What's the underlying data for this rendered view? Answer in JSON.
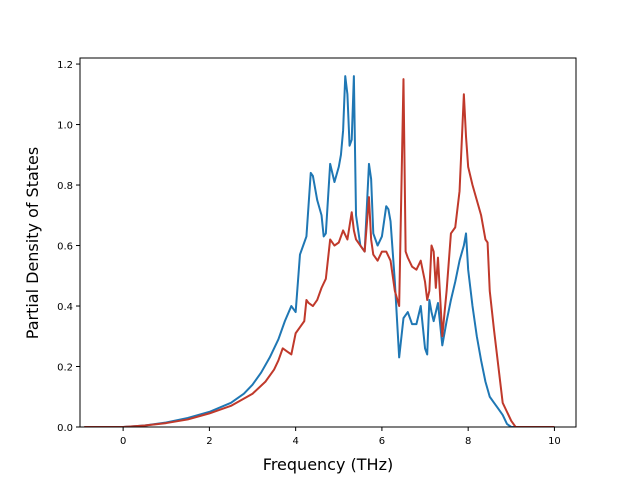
{
  "chart_data": {
    "type": "line",
    "xlabel": "Frequency (THz)",
    "ylabel": "Partial Density of States",
    "xlim": [
      -1.0,
      10.5
    ],
    "ylim": [
      0.0,
      1.22
    ],
    "xticks": [
      0,
      2,
      4,
      6,
      8,
      10
    ],
    "yticks": [
      0.0,
      0.2,
      0.4,
      0.6,
      0.8,
      1.0,
      1.2
    ],
    "xtick_labels": [
      "0",
      "2",
      "4",
      "6",
      "8",
      "10"
    ],
    "ytick_labels": [
      "0.0",
      "0.2",
      "0.4",
      "0.6",
      "0.8",
      "1.0",
      "1.2"
    ],
    "grid": false,
    "series": [
      {
        "color": "#1f77b4",
        "x": [
          -0.9,
          0.0,
          0.5,
          1.0,
          1.5,
          2.0,
          2.5,
          2.8,
          3.0,
          3.2,
          3.4,
          3.6,
          3.75,
          3.9,
          4.0,
          4.1,
          4.2,
          4.25,
          4.35,
          4.4,
          4.5,
          4.6,
          4.65,
          4.7,
          4.8,
          4.9,
          5.0,
          5.05,
          5.1,
          5.15,
          5.2,
          5.25,
          5.3,
          5.35,
          5.4,
          5.5,
          5.6,
          5.7,
          5.75,
          5.8,
          5.9,
          6.0,
          6.1,
          6.15,
          6.2,
          6.3,
          6.4,
          6.5,
          6.6,
          6.7,
          6.8,
          6.9,
          7.0,
          7.05,
          7.1,
          7.15,
          7.2,
          7.3,
          7.4,
          7.5,
          7.6,
          7.7,
          7.8,
          7.9,
          7.95,
          8.0,
          8.1,
          8.2,
          8.3,
          8.4,
          8.5,
          8.6,
          8.7,
          8.8,
          8.9,
          9.0,
          10.0
        ],
        "y": [
          0.0,
          0.0,
          0.005,
          0.015,
          0.03,
          0.05,
          0.08,
          0.11,
          0.14,
          0.18,
          0.23,
          0.29,
          0.35,
          0.4,
          0.38,
          0.57,
          0.61,
          0.63,
          0.84,
          0.83,
          0.75,
          0.7,
          0.63,
          0.64,
          0.87,
          0.81,
          0.86,
          0.9,
          0.98,
          1.16,
          1.1,
          0.93,
          0.95,
          1.16,
          0.7,
          0.6,
          0.58,
          0.87,
          0.82,
          0.64,
          0.6,
          0.63,
          0.73,
          0.72,
          0.68,
          0.48,
          0.23,
          0.36,
          0.38,
          0.34,
          0.34,
          0.4,
          0.26,
          0.24,
          0.42,
          0.38,
          0.35,
          0.41,
          0.27,
          0.35,
          0.42,
          0.48,
          0.55,
          0.6,
          0.64,
          0.52,
          0.4,
          0.3,
          0.22,
          0.15,
          0.1,
          0.08,
          0.06,
          0.04,
          0.01,
          0.0,
          0.0
        ]
      },
      {
        "color": "#c0392b",
        "x": [
          -0.9,
          0.0,
          0.5,
          1.0,
          1.5,
          2.0,
          2.5,
          3.0,
          3.3,
          3.5,
          3.6,
          3.7,
          3.8,
          3.9,
          4.0,
          4.1,
          4.2,
          4.25,
          4.3,
          4.4,
          4.5,
          4.6,
          4.7,
          4.8,
          4.9,
          5.0,
          5.1,
          5.2,
          5.3,
          5.35,
          5.4,
          5.5,
          5.6,
          5.7,
          5.75,
          5.8,
          5.9,
          6.0,
          6.1,
          6.2,
          6.3,
          6.4,
          6.5,
          6.55,
          6.6,
          6.7,
          6.8,
          6.9,
          7.0,
          7.05,
          7.1,
          7.15,
          7.2,
          7.25,
          7.3,
          7.4,
          7.5,
          7.6,
          7.7,
          7.8,
          7.9,
          7.95,
          8.0,
          8.1,
          8.2,
          8.3,
          8.4,
          8.45,
          8.5,
          8.6,
          8.7,
          8.8,
          8.9,
          9.0,
          9.1,
          10.0
        ],
        "y": [
          0.0,
          0.0,
          0.005,
          0.013,
          0.025,
          0.045,
          0.07,
          0.11,
          0.15,
          0.19,
          0.22,
          0.26,
          0.25,
          0.24,
          0.31,
          0.33,
          0.35,
          0.42,
          0.41,
          0.4,
          0.42,
          0.46,
          0.49,
          0.62,
          0.6,
          0.61,
          0.65,
          0.62,
          0.71,
          0.65,
          0.62,
          0.6,
          0.58,
          0.76,
          0.62,
          0.57,
          0.55,
          0.58,
          0.58,
          0.55,
          0.45,
          0.4,
          1.15,
          0.58,
          0.56,
          0.53,
          0.52,
          0.55,
          0.48,
          0.42,
          0.45,
          0.6,
          0.58,
          0.46,
          0.56,
          0.3,
          0.45,
          0.64,
          0.66,
          0.78,
          1.1,
          0.96,
          0.86,
          0.8,
          0.75,
          0.7,
          0.62,
          0.61,
          0.45,
          0.32,
          0.2,
          0.08,
          0.05,
          0.02,
          0.0,
          0.0
        ]
      }
    ]
  }
}
